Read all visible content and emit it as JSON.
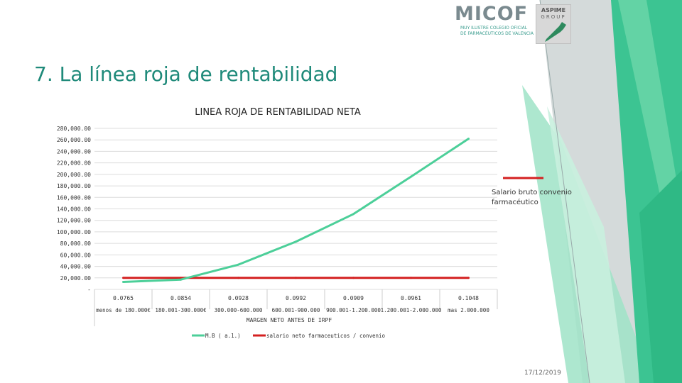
{
  "slide": {
    "title": "7. La línea roja de rentabilidad",
    "date": "17/12/2019"
  },
  "logos": {
    "micof": {
      "word": "MICOF",
      "subtitle_line1": "MUY ILUSTRE COLEGIO OFICIAL",
      "subtitle_line2": "DE FARMACÉUTICOS DE VALENCIA"
    },
    "aspime": {
      "word": "ASPIME",
      "group": "GROUP"
    }
  },
  "colors": {
    "accent_green": "#3cc492",
    "line_green": "#4ccf99",
    "line_red": "#d42020",
    "title_teal": "#1f8a7a"
  },
  "chart_data": {
    "type": "line",
    "title": "LINEA ROJA DE RENTABILIDAD NETA",
    "xlabel": "MARGEN NETO ANTES DE IRPF",
    "ylabel": "",
    "ylim": [
      0,
      280000
    ],
    "yticks": [
      0,
      20000,
      40000,
      60000,
      80000,
      100000,
      120000,
      140000,
      160000,
      180000,
      200000,
      220000,
      240000,
      260000,
      280000
    ],
    "ytick_labels": [
      "-",
      "20,000.00",
      "40,000.00",
      "60,000.00",
      "80,000.00",
      "100,000.00",
      "120,000.00",
      "140,000.00",
      "160,000.00",
      "180,000.00",
      "200,000.00",
      "220,000.00",
      "240,000.00",
      "260,000.00",
      "280,000.00"
    ],
    "grid": true,
    "categories": [
      "menos de 180.000€",
      "180.001-300.000€",
      "300.000-600.000",
      "600.001-900.000",
      "900.001-1.200.000",
      "1.200.001-2.000.000",
      "mas 2.000.000"
    ],
    "category_values": [
      "0.0765",
      "0.0854",
      "0.0928",
      "0.0992",
      "0.0909",
      "0.0961",
      "0.1048"
    ],
    "series": [
      {
        "name": "M.B ( a.1.)",
        "color": "#4ccf99",
        "values": [
          13000,
          17000,
          43000,
          83000,
          131000,
          196000,
          262000
        ]
      },
      {
        "name": "salario neto farmaceuticos / convenio",
        "color": "#d42020",
        "values": [
          20000,
          20000,
          20000,
          20000,
          20000,
          20000,
          20000
        ]
      }
    ],
    "legend_position": "bottom",
    "side_legend": {
      "label_line1": "Salario bruto convenio",
      "label_line2": "farmacéutico",
      "color": "#d42020",
      "position": "right"
    }
  }
}
